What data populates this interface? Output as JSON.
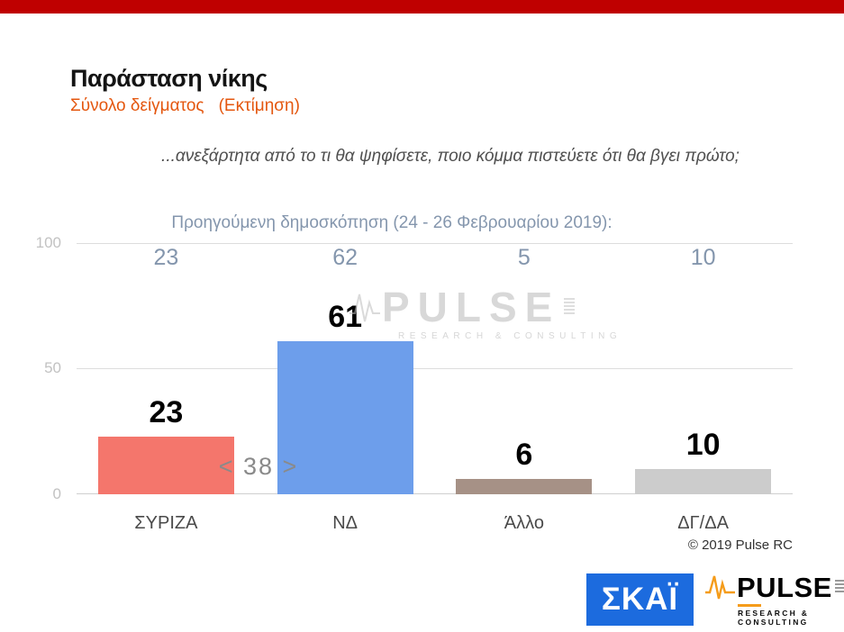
{
  "colors": {
    "top_bar": "#BF0000",
    "subtitle_orange": "#E4570F",
    "previous_poll_text": "#8496AD",
    "annotation_gray": "#8A8A8A",
    "skai_blue": "#1C6BDE",
    "pulse_orange": "#F59C1A"
  },
  "header": {
    "title": "Παράσταση νίκης",
    "sample_label": "Σύνολο δείγματος",
    "estimate_label": "(Εκτίμηση)",
    "question": "...ανεξάρτητα από το τι θα ψηφίσετε, ποιο κόμμα πιστεύετε ότι θα βγει πρώτο;"
  },
  "previous_poll": {
    "label": "Προηγούμενη δημοσκόπηση (24 - 26 Φεβρουαρίου 2019):"
  },
  "chart_data": {
    "type": "bar",
    "title": "Παράσταση νίκης",
    "subtitle": "Σύνολο δείγματος (Εκτίμηση)",
    "categories": [
      "ΣΥΡΙΖΑ",
      "ΝΔ",
      "Άλλο",
      "ΔΓ/ΔΑ"
    ],
    "values": [
      23,
      61,
      6,
      10
    ],
    "previous_values": [
      23,
      62,
      5,
      10
    ],
    "bar_colors": [
      "#F4766C",
      "#6D9EEB",
      "#A69186",
      "#CCCCCC"
    ],
    "ylim": [
      0,
      100
    ],
    "yticks": [
      "0",
      "50",
      "100"
    ],
    "grid": true,
    "legend": "none",
    "annotation": "< 38 >",
    "annotation_meaning": "difference between first and second bar"
  },
  "watermark": {
    "brand": "PULSE",
    "tagline": "RESEARCH & CONSULTING"
  },
  "footer": {
    "copyright": "© 2019 Pulse RC"
  },
  "logos": {
    "skai_label": "ΣΚΑΪ",
    "pulse_brand": "PULSE",
    "pulse_tagline": "RESEARCH & CONSULTING"
  }
}
